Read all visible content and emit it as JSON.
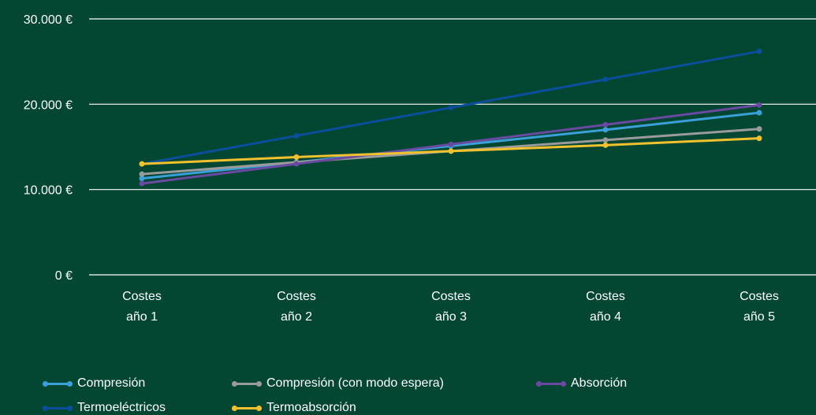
{
  "chart_data": {
    "type": "line",
    "categories": [
      [
        "Costes",
        "año 1"
      ],
      [
        "Costes",
        "año 2"
      ],
      [
        "Costes",
        "año 3"
      ],
      [
        "Costes",
        "año 4"
      ],
      [
        "Costes",
        "año 5"
      ]
    ],
    "y_ticks": [
      {
        "value": 0,
        "label": "0 €"
      },
      {
        "value": 10000,
        "label": "10.000 €"
      },
      {
        "value": 20000,
        "label": "20.000 €"
      },
      {
        "value": 30000,
        "label": "30.000 €"
      }
    ],
    "ylim": [
      0,
      30000
    ],
    "grid": true,
    "legend_position": "bottom",
    "series": [
      {
        "name": "Compresión",
        "color": "#3aa0d8",
        "values": [
          11300,
          13200,
          15100,
          17000,
          19000
        ]
      },
      {
        "name": "Compresión (con modo espera)",
        "color": "#9a9a9a",
        "values": [
          11800,
          13200,
          14500,
          15800,
          17100
        ]
      },
      {
        "name": "Absorción",
        "color": "#6a4aa0",
        "values": [
          10700,
          13000,
          15300,
          17600,
          19900
        ]
      },
      {
        "name": "Termoeléctricos",
        "color": "#0a4e9c",
        "values": [
          13000,
          16300,
          19600,
          22900,
          26200
        ]
      },
      {
        "name": "Termoabsorción",
        "color": "#f2c12e",
        "values": [
          13000,
          13800,
          14500,
          15200,
          16000
        ]
      }
    ]
  }
}
